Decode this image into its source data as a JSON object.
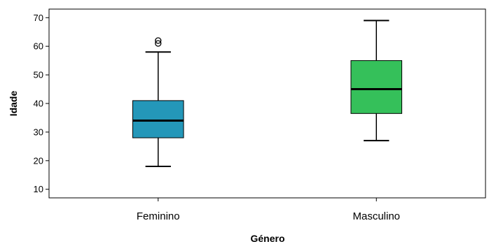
{
  "chart_data": {
    "type": "boxplot",
    "xlabel": "Género",
    "ylabel": "Idade",
    "ylim": [
      7,
      73
    ],
    "yticks": [
      10,
      20,
      30,
      40,
      50,
      60,
      70
    ],
    "categories": [
      "Feminino",
      "Masculino"
    ],
    "boxes": [
      {
        "category": "Feminino",
        "min": 18,
        "q1": 28,
        "median": 34,
        "q3": 41,
        "max": 58,
        "outliers": [
          61,
          62
        ],
        "color": "#2497b9"
      },
      {
        "category": "Masculino",
        "min": 27,
        "q1": 36.5,
        "median": 45,
        "q3": 55,
        "max": 69,
        "outliers": [],
        "color": "#35c05a"
      }
    ],
    "grid": false,
    "legend": "none"
  }
}
